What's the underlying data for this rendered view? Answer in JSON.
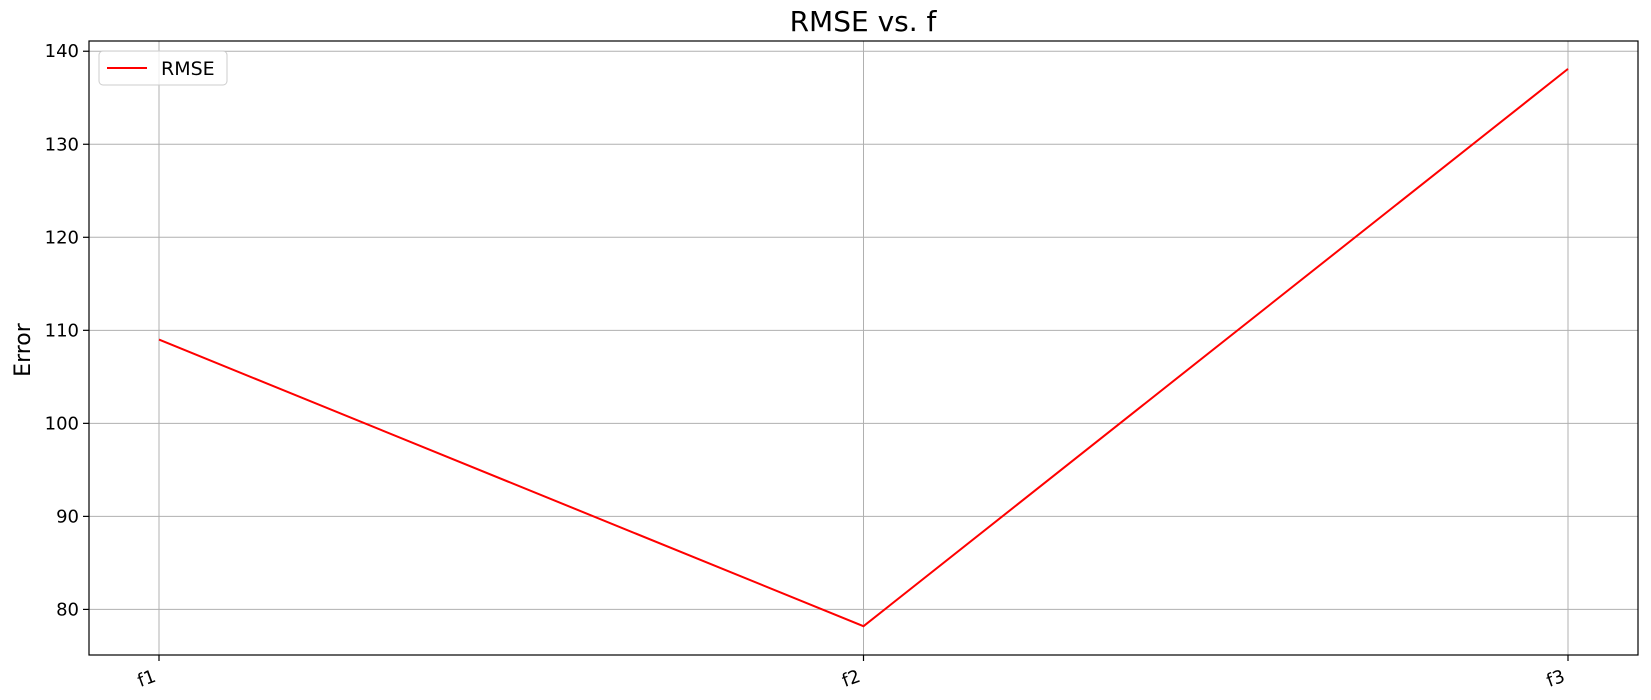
{
  "chart_data": {
    "type": "line",
    "title": "RMSE vs. f",
    "xlabel": "",
    "ylabel": "Error",
    "categories": [
      "f1",
      "f2",
      "f3"
    ],
    "series": [
      {
        "name": "RMSE",
        "values": [
          109,
          78.2,
          138.1
        ],
        "color": "#ff0000"
      }
    ],
    "ylim": [
      75.1,
      141.1
    ],
    "yticks": [
      80,
      90,
      100,
      110,
      120,
      130,
      140
    ],
    "grid": true,
    "legend_position": "top-left"
  }
}
